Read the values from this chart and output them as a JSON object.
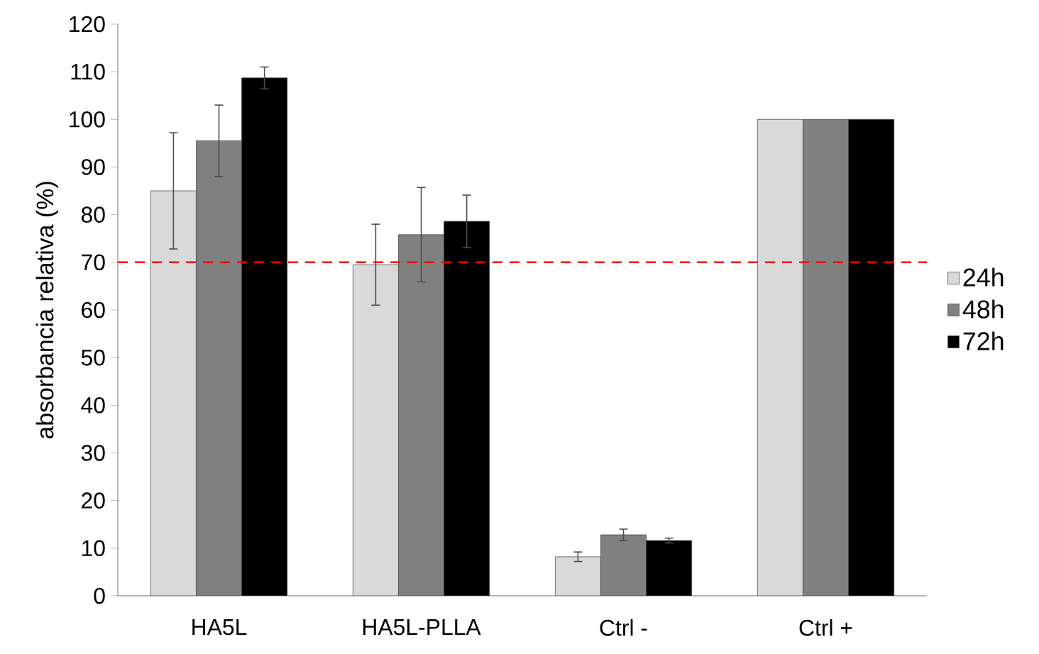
{
  "chart_data": {
    "type": "bar",
    "ylabel": "absorbancia relativa (%)",
    "categories": [
      "HA5L",
      "HA5L-PLLA",
      "Ctrl -",
      "Ctrl +"
    ],
    "series": [
      {
        "name": "24h",
        "color": "#d9d9d9",
        "values": [
          85,
          69.5,
          8.2,
          100
        ],
        "errors": [
          12.2,
          8.5,
          1,
          null
        ]
      },
      {
        "name": "48h",
        "color": "#808080",
        "values": [
          95.5,
          75.8,
          12.8,
          100
        ],
        "errors": [
          7.5,
          9.9,
          1.2,
          null
        ]
      },
      {
        "name": "72h",
        "color": "#000000",
        "values": [
          108.7,
          78.6,
          11.6,
          100
        ],
        "errors": [
          2.3,
          5.5,
          0.5,
          null
        ]
      }
    ],
    "ylim": [
      0,
      120
    ],
    "yticks": [
      0,
      10,
      20,
      30,
      40,
      50,
      60,
      70,
      80,
      90,
      100,
      110,
      120
    ],
    "ref_lines": [
      {
        "axis": "y",
        "value": 70,
        "color": "#ff0000",
        "line_style": "dashed"
      }
    ],
    "legend": "right",
    "grid": false
  }
}
